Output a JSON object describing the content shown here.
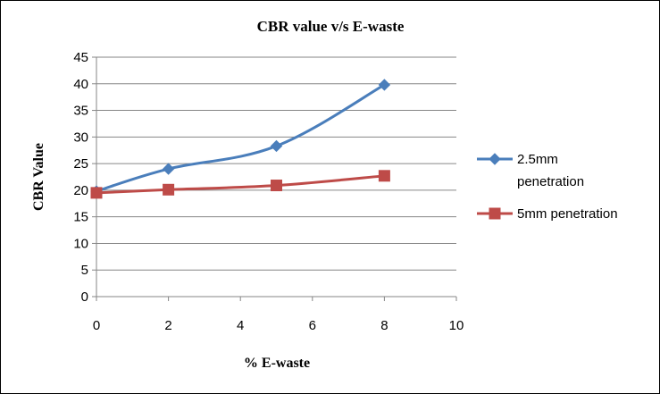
{
  "chart_data": {
    "type": "line",
    "title": "CBR value v/s E-waste",
    "xlabel": "% E-waste",
    "ylabel": "CBR Value",
    "xlim": [
      0,
      10
    ],
    "ylim": [
      0,
      45
    ],
    "xticks": [
      0,
      2,
      4,
      6,
      8,
      10
    ],
    "yticks": [
      0,
      5,
      10,
      15,
      20,
      25,
      30,
      35,
      40,
      45
    ],
    "grid": "horizontal",
    "legend_position": "right",
    "series": [
      {
        "name": "2.5mm penetration",
        "legend_lines": [
          "2.5mm",
          "penetration"
        ],
        "color": "#4a7ebb",
        "marker": "diamond",
        "x": [
          0,
          2,
          5,
          8
        ],
        "y": [
          19.8,
          24.0,
          28.3,
          39.8
        ]
      },
      {
        "name": "5mm penetration",
        "legend_lines": [
          "5mm penetration"
        ],
        "color": "#be4b48",
        "marker": "square",
        "x": [
          0,
          2,
          5,
          8
        ],
        "y": [
          19.5,
          20.1,
          20.9,
          22.7
        ]
      }
    ]
  }
}
